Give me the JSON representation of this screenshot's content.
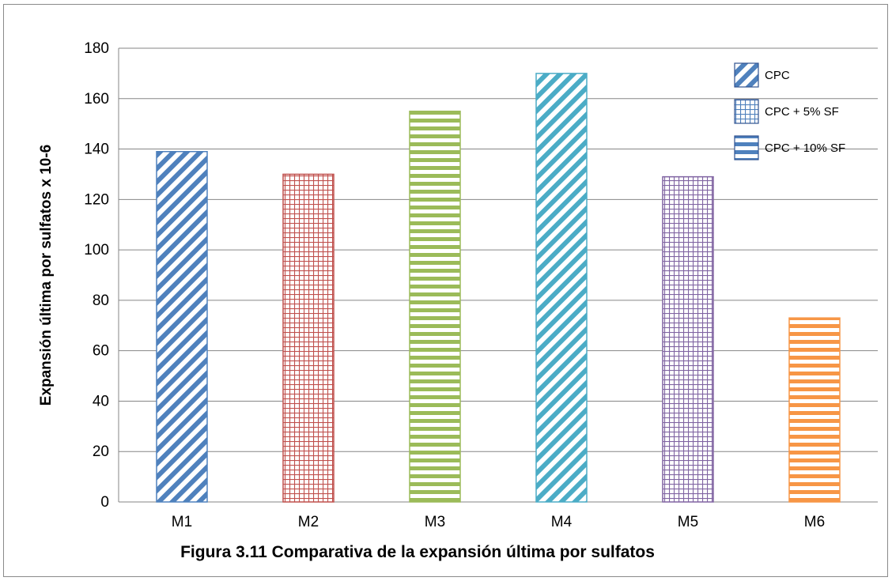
{
  "chart_data": {
    "type": "bar",
    "title": "",
    "caption": "Figura 3.11 Comparativa de la expansión última por sulfatos",
    "xlabel": "",
    "ylabel": "Expansión última por sulfatos x 10-6",
    "ylim": [
      0,
      180
    ],
    "ytick_step": 20,
    "yticks": [
      "0",
      "20",
      "40",
      "60",
      "80",
      "100",
      "120",
      "140",
      "160",
      "180"
    ],
    "grid": true,
    "legend_position": "top-right",
    "categories": [
      "M1",
      "M2",
      "M3",
      "M4",
      "M5",
      "M6"
    ],
    "values": [
      139,
      130,
      155,
      170,
      129,
      73
    ],
    "bars": [
      {
        "category": "M1",
        "value": 139,
        "pattern": "diagonal",
        "color": "#4f81bd"
      },
      {
        "category": "M2",
        "value": 130,
        "pattern": "grid",
        "color": "#c0504d"
      },
      {
        "category": "M3",
        "value": 155,
        "pattern": "horizontal",
        "color": "#9bbb59"
      },
      {
        "category": "M4",
        "value": 170,
        "pattern": "diagonal",
        "color": "#4bacc6"
      },
      {
        "category": "M5",
        "value": 129,
        "pattern": "grid",
        "color": "#8064a2"
      },
      {
        "category": "M6",
        "value": 73,
        "pattern": "horizontal",
        "color": "#f79646"
      }
    ],
    "legend": [
      {
        "label": "CPC",
        "pattern": "diagonal",
        "color": "#4f81bd"
      },
      {
        "label": "CPC + 5% SF",
        "pattern": "grid",
        "color": "#4f81bd"
      },
      {
        "label": "CPC + 10% SF",
        "pattern": "horizontal",
        "color": "#4f81bd"
      }
    ]
  }
}
